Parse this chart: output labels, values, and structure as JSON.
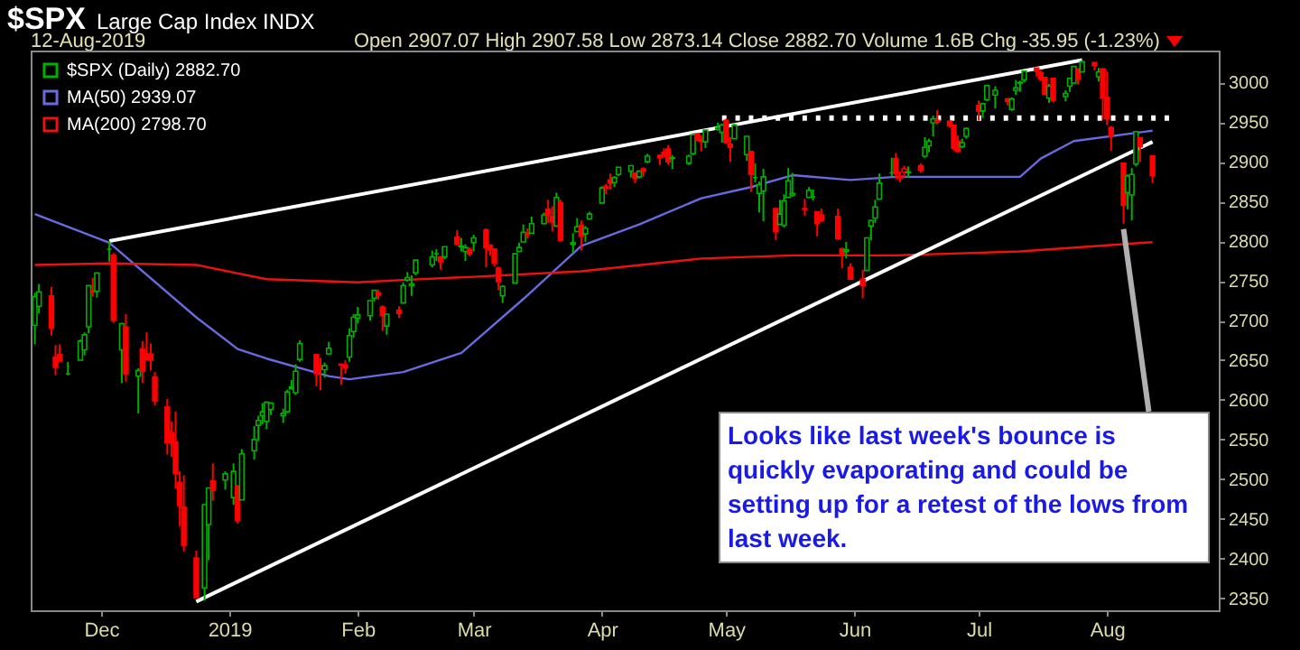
{
  "chart_data": {
    "type": "candlestick",
    "title": "$SPX",
    "subtitle": "Large Cap Index INDX",
    "annotations": [
      "12-Aug-2019",
      "Open 2907.07 High 2907.58 Low 2873.14 Close 2882.70 Volume 1.6B Chg -35.95 (-1.23%)",
      {
        "text": "Looks like last week's bounce is quickly evaporating and could be setting up for a retest of the lows from last week.",
        "x": "2019-08-05",
        "y": 2822
      }
    ],
    "xlim": [
      "2018-11-14",
      "2019-08-28"
    ],
    "xticks": [
      {
        "value": "2018-12-01",
        "label": "Dec"
      },
      {
        "value": "2019-01-01",
        "label": "2019"
      },
      {
        "value": "2019-02-01",
        "label": "Feb"
      },
      {
        "value": "2019-03-01",
        "label": "Mar"
      },
      {
        "value": "2019-04-01",
        "label": "Apr"
      },
      {
        "value": "2019-05-01",
        "label": "May"
      },
      {
        "value": "2019-06-01",
        "label": "Jun"
      },
      {
        "value": "2019-07-01",
        "label": "Jul"
      },
      {
        "value": "2019-08-01",
        "label": "Aug"
      }
    ],
    "ylim": [
      2335,
      3040
    ],
    "yticks": [
      2350,
      2400,
      2450,
      2500,
      2550,
      2600,
      2650,
      2700,
      2750,
      2800,
      2850,
      2900,
      2950,
      3000
    ],
    "legend": "top left",
    "series": [
      {
        "type": "candlestick",
        "name": "$SPX (Daily) 2882.70",
        "color": "#00b000",
        "x": [
          "2018-11-15",
          "2018-11-16",
          "2018-11-19",
          "2018-11-20",
          "2018-11-21",
          "2018-11-23",
          "2018-11-26",
          "2018-11-27",
          "2018-11-28",
          "2018-11-29",
          "2018-11-30",
          "2018-12-03",
          "2018-12-04",
          "2018-12-06",
          "2018-12-07",
          "2018-12-10",
          "2018-12-11",
          "2018-12-12",
          "2018-12-13",
          "2018-12-14",
          "2018-12-17",
          "2018-12-18",
          "2018-12-19",
          "2018-12-20",
          "2018-12-21",
          "2018-12-24",
          "2018-12-26",
          "2018-12-27",
          "2018-12-28",
          "2018-12-31",
          "2019-01-02",
          "2019-01-03",
          "2019-01-04",
          "2019-01-07",
          "2019-01-08",
          "2019-01-09",
          "2019-01-10",
          "2019-01-11",
          "2019-01-14",
          "2019-01-15",
          "2019-01-16",
          "2019-01-17",
          "2019-01-18",
          "2019-01-22",
          "2019-01-23",
          "2019-01-24",
          "2019-01-25",
          "2019-01-28",
          "2019-01-29",
          "2019-01-30",
          "2019-01-31",
          "2019-02-01",
          "2019-02-04",
          "2019-02-05",
          "2019-02-06",
          "2019-02-07",
          "2019-02-08",
          "2019-02-11",
          "2019-02-12",
          "2019-02-13",
          "2019-02-14",
          "2019-02-15",
          "2019-02-19",
          "2019-02-20",
          "2019-02-21",
          "2019-02-22",
          "2019-02-25",
          "2019-02-26",
          "2019-02-27",
          "2019-02-28",
          "2019-03-01",
          "2019-03-04",
          "2019-03-05",
          "2019-03-06",
          "2019-03-07",
          "2019-03-08",
          "2019-03-11",
          "2019-03-12",
          "2019-03-13",
          "2019-03-14",
          "2019-03-15",
          "2019-03-18",
          "2019-03-19",
          "2019-03-20",
          "2019-03-21",
          "2019-03-22",
          "2019-03-25",
          "2019-03-26",
          "2019-03-27",
          "2019-03-28",
          "2019-03-29",
          "2019-04-01",
          "2019-04-02",
          "2019-04-03",
          "2019-04-04",
          "2019-04-05",
          "2019-04-08",
          "2019-04-09",
          "2019-04-10",
          "2019-04-11",
          "2019-04-12",
          "2019-04-15",
          "2019-04-16",
          "2019-04-17",
          "2019-04-18",
          "2019-04-22",
          "2019-04-23",
          "2019-04-24",
          "2019-04-25",
          "2019-04-26",
          "2019-04-29",
          "2019-04-30",
          "2019-05-01",
          "2019-05-02",
          "2019-05-03",
          "2019-05-06",
          "2019-05-07",
          "2019-05-08",
          "2019-05-09",
          "2019-05-10",
          "2019-05-13",
          "2019-05-14",
          "2019-05-15",
          "2019-05-16",
          "2019-05-17",
          "2019-05-20",
          "2019-05-21",
          "2019-05-22",
          "2019-05-23",
          "2019-05-24",
          "2019-05-28",
          "2019-05-29",
          "2019-05-30",
          "2019-05-31",
          "2019-06-03",
          "2019-06-04",
          "2019-06-05",
          "2019-06-06",
          "2019-06-07",
          "2019-06-10",
          "2019-06-11",
          "2019-06-12",
          "2019-06-13",
          "2019-06-14",
          "2019-06-17",
          "2019-06-18",
          "2019-06-19",
          "2019-06-20",
          "2019-06-21",
          "2019-06-24",
          "2019-06-25",
          "2019-06-26",
          "2019-06-27",
          "2019-06-28",
          "2019-07-01",
          "2019-07-02",
          "2019-07-03",
          "2019-07-05",
          "2019-07-08",
          "2019-07-09",
          "2019-07-10",
          "2019-07-11",
          "2019-07-12",
          "2019-07-15",
          "2019-07-16",
          "2019-07-17",
          "2019-07-18",
          "2019-07-19",
          "2019-07-22",
          "2019-07-23",
          "2019-07-24",
          "2019-07-25",
          "2019-07-26",
          "2019-07-29",
          "2019-07-30",
          "2019-07-31",
          "2019-08-01",
          "2019-08-02",
          "2019-08-05",
          "2019-08-06",
          "2019-08-07",
          "2019-08-08",
          "2019-08-09",
          "2019-08-12"
        ],
        "ohlc": [
          [
            2694,
            2735,
            2670,
            2730
          ],
          [
            2718,
            2746,
            2709,
            2736
          ],
          [
            2731,
            2742,
            2681,
            2690
          ],
          [
            2654,
            2669,
            2631,
            2641
          ],
          [
            2657,
            2670,
            2649,
            2649
          ],
          [
            2633,
            2648,
            2631,
            2633
          ],
          [
            2650,
            2676,
            2650,
            2674
          ],
          [
            2663,
            2685,
            2656,
            2682
          ],
          [
            2692,
            2744,
            2684,
            2744
          ],
          [
            2736,
            2754,
            2730,
            2738
          ],
          [
            2737,
            2760,
            2729,
            2760
          ],
          [
            2790,
            2800,
            2774,
            2790
          ],
          [
            2782,
            2785,
            2697,
            2700
          ],
          [
            2663,
            2697,
            2621,
            2696
          ],
          [
            2692,
            2708,
            2623,
            2633
          ],
          [
            2630,
            2640,
            2583,
            2637
          ],
          [
            2664,
            2674,
            2621,
            2636
          ],
          [
            2658,
            2685,
            2650,
            2651
          ],
          [
            2658,
            2671,
            2637,
            2650
          ],
          [
            2629,
            2635,
            2593,
            2599
          ],
          [
            2591,
            2601,
            2531,
            2546
          ],
          [
            2559,
            2573,
            2528,
            2546
          ],
          [
            2547,
            2585,
            2488,
            2507
          ],
          [
            2496,
            2510,
            2441,
            2467
          ],
          [
            2465,
            2505,
            2409,
            2417
          ],
          [
            2401,
            2410,
            2351,
            2351
          ],
          [
            2363,
            2468,
            2347,
            2468
          ],
          [
            2443,
            2489,
            2398,
            2489
          ],
          [
            2498,
            2520,
            2473,
            2486
          ],
          [
            2499,
            2510,
            2487,
            2507
          ],
          [
            2477,
            2520,
            2468,
            2510
          ],
          [
            2491,
            2493,
            2444,
            2448
          ],
          [
            2474,
            2538,
            2474,
            2532
          ],
          [
            2536,
            2567,
            2525,
            2550
          ],
          [
            2568,
            2580,
            2548,
            2574
          ],
          [
            2580,
            2596,
            2569,
            2585
          ],
          [
            2573,
            2598,
            2563,
            2597
          ],
          [
            2588,
            2597,
            2581,
            2596
          ],
          [
            2580,
            2589,
            2571,
            2583
          ],
          [
            2585,
            2613,
            2585,
            2610
          ],
          [
            2614,
            2625,
            2613,
            2616
          ],
          [
            2609,
            2645,
            2606,
            2636
          ],
          [
            2651,
            2675,
            2648,
            2671
          ],
          [
            2657,
            2657,
            2617,
            2633
          ],
          [
            2643,
            2653,
            2612,
            2639
          ],
          [
            2638,
            2647,
            2628,
            2643
          ],
          [
            2658,
            2673,
            2657,
            2665
          ],
          [
            2645,
            2645,
            2619,
            2644
          ],
          [
            2644,
            2650,
            2633,
            2640
          ],
          [
            2654,
            2690,
            2648,
            2681
          ],
          [
            2686,
            2708,
            2678,
            2704
          ],
          [
            2703,
            2717,
            2696,
            2707
          ],
          [
            2706,
            2725,
            2700,
            2725
          ],
          [
            2728,
            2738,
            2724,
            2738
          ],
          [
            2735,
            2739,
            2726,
            2732
          ],
          [
            2717,
            2719,
            2687,
            2706
          ],
          [
            2693,
            2708,
            2682,
            2708
          ],
          [
            2713,
            2718,
            2703,
            2709
          ],
          [
            2722,
            2748,
            2722,
            2744
          ],
          [
            2751,
            2761,
            2749,
            2754
          ],
          [
            2744,
            2757,
            2731,
            2746
          ],
          [
            2760,
            2776,
            2757,
            2776
          ],
          [
            2770,
            2788,
            2767,
            2780
          ],
          [
            2784,
            2790,
            2775,
            2784
          ],
          [
            2780,
            2781,
            2764,
            2774
          ],
          [
            2780,
            2793,
            2777,
            2793
          ],
          [
            2805,
            2814,
            2794,
            2796
          ],
          [
            2793,
            2804,
            2787,
            2794
          ],
          [
            2787,
            2796,
            2775,
            2792
          ],
          [
            2789,
            2792,
            2781,
            2784
          ],
          [
            2798,
            2808,
            2787,
            2804
          ],
          [
            2814,
            2816,
            2767,
            2792
          ],
          [
            2795,
            2796,
            2782,
            2789
          ],
          [
            2790,
            2790,
            2768,
            2772
          ],
          [
            2766,
            2768,
            2738,
            2749
          ],
          [
            2731,
            2744,
            2722,
            2743
          ],
          [
            2747,
            2784,
            2747,
            2784
          ],
          [
            2787,
            2798,
            2786,
            2792
          ],
          [
            2799,
            2821,
            2799,
            2811
          ],
          [
            2810,
            2816,
            2803,
            2808
          ],
          [
            2810,
            2831,
            2810,
            2822
          ],
          [
            2822,
            2836,
            2821,
            2833
          ],
          [
            2840,
            2852,
            2823,
            2833
          ],
          [
            2831,
            2844,
            2812,
            2824
          ],
          [
            2819,
            2861,
            2818,
            2855
          ],
          [
            2848,
            2852,
            2800,
            2801
          ],
          [
            2796,
            2810,
            2785,
            2798
          ],
          [
            2812,
            2829,
            2812,
            2818
          ],
          [
            2820,
            2826,
            2788,
            2806
          ],
          [
            2809,
            2819,
            2799,
            2816
          ],
          [
            2828,
            2837,
            2827,
            2834
          ],
          [
            2848,
            2869,
            2848,
            2867
          ],
          [
            2869,
            2872,
            2859,
            2867
          ],
          [
            2877,
            2885,
            2865,
            2873
          ],
          [
            2874,
            2882,
            2868,
            2880
          ],
          [
            2884,
            2893,
            2882,
            2893
          ],
          [
            2888,
            2895,
            2880,
            2895
          ],
          [
            2886,
            2886,
            2873,
            2879
          ],
          [
            2881,
            2889,
            2879,
            2888
          ],
          [
            2891,
            2893,
            2881,
            2888
          ],
          [
            2900,
            2910,
            2898,
            2907
          ],
          [
            2908,
            2909,
            2896,
            2905
          ],
          [
            2912,
            2917,
            2905,
            2907
          ],
          [
            2916,
            2921,
            2896,
            2900
          ],
          [
            2904,
            2908,
            2891,
            2905
          ],
          [
            2898,
            2909,
            2896,
            2907
          ],
          [
            2910,
            2936,
            2908,
            2934
          ],
          [
            2935,
            2936,
            2926,
            2927
          ],
          [
            2928,
            2933,
            2913,
            2926
          ],
          [
            2925,
            2940,
            2917,
            2940
          ],
          [
            2941,
            2949,
            2939,
            2943
          ],
          [
            2937,
            2948,
            2924,
            2946
          ],
          [
            2952,
            2954,
            2923,
            2924
          ],
          [
            2922,
            2931,
            2900,
            2918
          ],
          [
            2929,
            2948,
            2929,
            2946
          ],
          [
            2909,
            2932,
            2901,
            2932
          ],
          [
            2913,
            2914,
            2862,
            2884
          ],
          [
            2880,
            2898,
            2874,
            2880
          ],
          [
            2860,
            2875,
            2836,
            2871
          ],
          [
            2863,
            2891,
            2825,
            2881
          ],
          [
            2841,
            2841,
            2801,
            2812
          ],
          [
            2821,
            2852,
            2821,
            2834
          ],
          [
            2820,
            2859,
            2817,
            2851
          ],
          [
            2855,
            2892,
            2855,
            2876
          ],
          [
            2858,
            2886,
            2856,
            2860
          ],
          [
            2841,
            2853,
            2832,
            2840
          ],
          [
            2855,
            2868,
            2855,
            2864
          ],
          [
            2856,
            2865,
            2851,
            2856
          ],
          [
            2837,
            2837,
            2806,
            2822
          ],
          [
            2833,
            2841,
            2824,
            2826
          ],
          [
            2831,
            2841,
            2802,
            2803
          ],
          [
            2790,
            2792,
            2766,
            2783
          ],
          [
            2787,
            2799,
            2778,
            2789
          ],
          [
            2767,
            2772,
            2751,
            2752
          ],
          [
            2752,
            2764,
            2728,
            2744
          ],
          [
            2763,
            2804,
            2763,
            2804
          ],
          [
            2819,
            2827,
            2801,
            2826
          ],
          [
            2829,
            2852,
            2823,
            2843
          ],
          [
            2853,
            2885,
            2852,
            2873
          ],
          [
            2886,
            2905,
            2882,
            2886
          ],
          [
            2904,
            2911,
            2878,
            2885
          ],
          [
            2882,
            2888,
            2874,
            2879
          ],
          [
            2887,
            2895,
            2880,
            2891
          ],
          [
            2886,
            2894,
            2880,
            2887
          ],
          [
            2895,
            2898,
            2886,
            2889
          ],
          [
            2907,
            2931,
            2905,
            2918
          ],
          [
            2920,
            2929,
            2912,
            2926
          ],
          [
            2949,
            2958,
            2932,
            2954
          ],
          [
            2952,
            2965,
            2947,
            2950
          ],
          [
            2951,
            2952,
            2943,
            2945
          ],
          [
            2946,
            2946,
            2914,
            2917
          ],
          [
            2926,
            2933,
            2912,
            2913
          ],
          [
            2919,
            2929,
            2917,
            2924
          ],
          [
            2932,
            2943,
            2929,
            2942
          ],
          [
            2971,
            2977,
            2952,
            2964
          ],
          [
            2964,
            2973,
            2955,
            2973
          ],
          [
            2978,
            2996,
            2976,
            2996
          ],
          [
            2984,
            2995,
            2967,
            2990
          ],
          [
            2979,
            2980,
            2971,
            2976
          ],
          [
            2966,
            2981,
            2964,
            2979
          ],
          [
            2990,
            3003,
            2984,
            2993
          ],
          [
            2999,
            3002,
            2988,
            3000
          ],
          [
            3003,
            3014,
            3000,
            3014
          ],
          [
            3018,
            3018,
            3007,
            3014
          ],
          [
            3012,
            3015,
            3002,
            3004
          ],
          [
            3006,
            3006,
            2984,
            2985
          ],
          [
            2980,
            2998,
            2974,
            2995
          ],
          [
            3005,
            3006,
            2975,
            2977
          ],
          [
            2982,
            2990,
            2976,
            2986
          ],
          [
            2995,
            3005,
            2988,
            3005
          ],
          [
            2999,
            3020,
            2998,
            3020
          ],
          [
            3017,
            3017,
            2997,
            3004
          ],
          [
            3013,
            3028,
            3013,
            3026
          ],
          [
            3025,
            3025,
            3015,
            3021
          ],
          [
            3007,
            3018,
            3001,
            3013
          ],
          [
            3017,
            3018,
            2953,
            2980
          ],
          [
            2981,
            3014,
            2946,
            2954
          ],
          [
            2943,
            2945,
            2914,
            2932
          ],
          [
            2898,
            2898,
            2822,
            2845
          ],
          [
            2861,
            2884,
            2840,
            2882
          ],
          [
            2858,
            2892,
            2826,
            2884
          ],
          [
            2897,
            2938,
            2894,
            2938
          ],
          [
            2930,
            2931,
            2900,
            2919
          ],
          [
            2907.07,
            2907.58,
            2873.14,
            2882.7
          ]
        ],
        "colors": [
          "#00b000",
          "#00b000",
          "#ff0000",
          "#ff0000",
          "#ff0000",
          "#00b000",
          "#00b000",
          "#00b000",
          "#00b000",
          "#ff0000",
          "#00b000",
          "#00b000",
          "#ff0000",
          "#00b000",
          "#ff0000",
          "#00b000",
          "#ff0000",
          "#ff0000",
          "#ff0000",
          "#ff0000",
          "#ff0000",
          "#ff0000",
          "#ff0000",
          "#ff0000",
          "#ff0000",
          "#ff0000",
          "#00b000",
          "#00b000",
          "#ff0000",
          "#00b000",
          "#00b000",
          "#ff0000",
          "#00b000",
          "#00b000",
          "#00b000",
          "#00b000",
          "#00b000",
          "#00b000",
          "#00b000",
          "#00b000",
          "#00b000",
          "#00b000",
          "#00b000",
          "#ff0000",
          "#ff0000",
          "#00b000",
          "#00b000",
          "#ff0000",
          "#ff0000",
          "#00b000",
          "#00b000",
          "#00b000",
          "#00b000",
          "#00b000",
          "#ff0000",
          "#ff0000",
          "#00b000",
          "#ff0000",
          "#00b000",
          "#00b000",
          "#00b000",
          "#00b000",
          "#00b000",
          "#00b000",
          "#ff0000",
          "#00b000",
          "#ff0000",
          "#00b000",
          "#00b000",
          "#ff0000",
          "#00b000",
          "#ff0000",
          "#ff0000",
          "#ff0000",
          "#ff0000",
          "#00b000",
          "#00b000",
          "#00b000",
          "#00b000",
          "#ff0000",
          "#00b000",
          "#00b000",
          "#ff0000",
          "#ff0000",
          "#00b000",
          "#ff0000",
          "#00b000",
          "#00b000",
          "#ff0000",
          "#00b000",
          "#00b000",
          "#00b000",
          "#ff0000",
          "#ff0000",
          "#00b000",
          "#00b000",
          "#00b000",
          "#ff0000",
          "#00b000",
          "#ff0000",
          "#00b000",
          "#ff0000",
          "#ff0000",
          "#ff0000",
          "#00b000",
          "#00b000",
          "#00b000",
          "#ff0000",
          "#ff0000",
          "#00b000",
          "#00b000",
          "#00b000",
          "#ff0000",
          "#ff0000",
          "#00b000",
          "#00b000",
          "#ff0000",
          "#00b000",
          "#00b000",
          "#00b000",
          "#ff0000",
          "#00b000",
          "#00b000",
          "#00b000",
          "#00b000",
          "#ff0000",
          "#00b000",
          "#00b000",
          "#ff0000",
          "#ff0000",
          "#ff0000",
          "#ff0000",
          "#00b000",
          "#ff0000",
          "#ff0000",
          "#00b000",
          "#00b000",
          "#00b000",
          "#00b000",
          "#00b000",
          "#ff0000",
          "#ff0000",
          "#ff0000",
          "#00b000",
          "#ff0000",
          "#00b000",
          "#00b000",
          "#00b000",
          "#ff0000",
          "#ff0000",
          "#ff0000",
          "#ff0000",
          "#00b000",
          "#00b000",
          "#ff0000",
          "#00b000",
          "#00b000",
          "#00b000",
          "#ff0000",
          "#00b000",
          "#00b000",
          "#00b000",
          "#00b000",
          "#ff0000",
          "#ff0000",
          "#ff0000",
          "#00b000",
          "#ff0000",
          "#00b000",
          "#00b000",
          "#00b000",
          "#ff0000",
          "#00b000",
          "#ff0000",
          "#00b000",
          "#ff0000",
          "#ff0000",
          "#ff0000",
          "#ff0000",
          "#00b000",
          "#00b000",
          "#00b000",
          "#ff0000",
          "#ff0000"
        ]
      },
      {
        "type": "line",
        "name": "MA(50) 2939.07",
        "color": "#6a6ae0",
        "x": [
          "2018-11-15",
          "2018-12-03",
          "2018-12-24",
          "2019-01-03",
          "2019-01-10",
          "2019-01-25",
          "2019-01-30",
          "2019-02-12",
          "2019-02-26",
          "2019-03-13",
          "2019-03-27",
          "2019-04-10",
          "2019-04-25",
          "2019-05-07",
          "2019-05-17",
          "2019-05-31",
          "2019-06-11",
          "2019-07-11",
          "2019-07-16",
          "2019-07-24",
          "2019-08-12"
        ],
        "values": [
          2834,
          2798,
          2704,
          2664,
          2652,
          2630,
          2626,
          2635,
          2659,
          2727,
          2794,
          2821,
          2854,
          2868,
          2883,
          2877,
          2881,
          2881,
          2904,
          2926,
          2939.07
        ]
      },
      {
        "type": "line",
        "name": "MA(200) 2798.70",
        "color": "#ee1111",
        "x": [
          "2018-11-15",
          "2018-12-03",
          "2018-12-24",
          "2019-01-10",
          "2019-02-01",
          "2019-02-12",
          "2019-03-01",
          "2019-03-27",
          "2019-04-25",
          "2019-05-17",
          "2019-06-11",
          "2019-07-11",
          "2019-08-12"
        ],
        "values": [
          2770,
          2772,
          2770,
          2752,
          2748,
          2751,
          2755,
          2762,
          2778,
          2782,
          2782,
          2787,
          2798.7
        ]
      },
      {
        "type": "line",
        "color": "#ffffff",
        "x": [
          "2018-12-03",
          "2019-07-26"
        ],
        "values": [
          2800,
          3028
        ]
      },
      {
        "type": "line",
        "color": "#ffffff",
        "x": [
          "2018-12-24",
          "2019-08-12"
        ],
        "values": [
          2346,
          2925
        ]
      },
      {
        "type": "line",
        "color": "#ffffff",
        "line_style": "dotted",
        "x": [
          "2019-04-30",
          "2019-08-16"
        ],
        "values": [
          2955,
          2955
        ]
      }
    ]
  }
}
